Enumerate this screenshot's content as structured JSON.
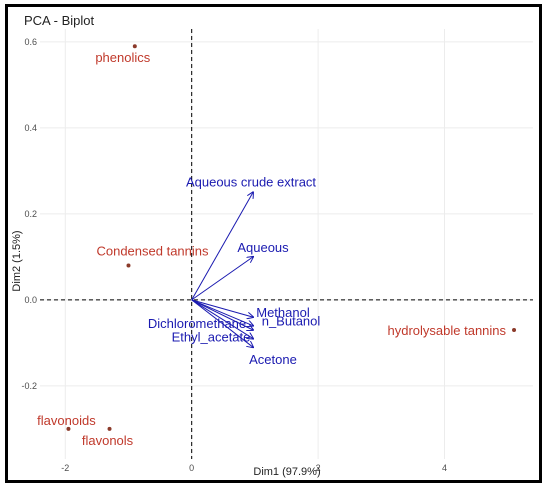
{
  "chart_data": {
    "type": "scatter",
    "title": "PCA - Biplot",
    "xlabel": "Dim1 (97.9%)",
    "ylabel": "Dim2 (1.5%)",
    "xlim": [
      -2.4,
      5.4
    ],
    "ylim": [
      -0.37,
      0.63
    ],
    "x_ticks": [
      -2,
      0,
      2,
      4
    ],
    "x_tick_labels": [
      "-2",
      "0",
      "2",
      "4"
    ],
    "y_ticks": [
      -0.2,
      0.0,
      0.2,
      0.4,
      0.6
    ],
    "y_tick_labels": [
      "-0.2",
      "0.0",
      "0.2",
      "0.4",
      "0.6"
    ],
    "grid": true,
    "reference_lines": {
      "x": 0,
      "y": 0,
      "style": "dashed"
    },
    "colors": {
      "individuals": "#c0392b",
      "individual_points": "#8b3a2a",
      "variables": "#1a1ab0",
      "grid": "#ececec"
    },
    "individuals": [
      {
        "name": "phenolics",
        "x": -0.9,
        "y": 0.59
      },
      {
        "name": "Condensed tannins",
        "x": -1.0,
        "y": 0.08
      },
      {
        "name": "hydrolysable tannins",
        "x": 5.1,
        "y": -0.07
      },
      {
        "name": "flavonoids",
        "x": -1.95,
        "y": -0.3
      },
      {
        "name": "flavonols",
        "x": -1.3,
        "y": -0.3
      }
    ],
    "variables": [
      {
        "name": "Aqueous crude extract",
        "x": 0.97,
        "y": 0.25
      },
      {
        "name": "Aqueous",
        "x": 0.97,
        "y": 0.1
      },
      {
        "name": "Methanol",
        "x": 0.97,
        "y": -0.04
      },
      {
        "name": "n_Butanol",
        "x": 0.97,
        "y": -0.06
      },
      {
        "name": "Dichloromethane",
        "x": 0.97,
        "y": -0.07
      },
      {
        "name": "Ethyl_acetate",
        "x": 0.97,
        "y": -0.09
      },
      {
        "name": "Acetone",
        "x": 0.97,
        "y": -0.11
      }
    ]
  }
}
